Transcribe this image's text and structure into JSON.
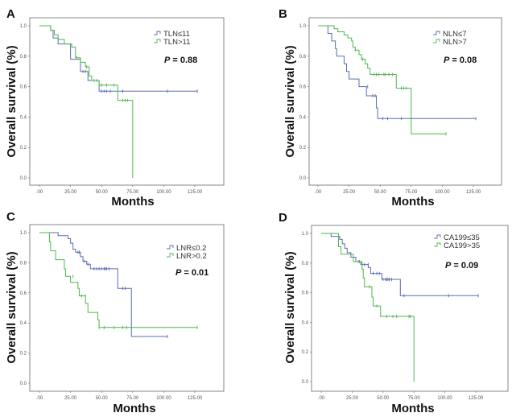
{
  "colors": {
    "group1": "#5b6cb3",
    "group2": "#4fb64f",
    "frame": "#666666"
  },
  "chart_data": [
    {
      "type": "line",
      "subtype": "kaplan-meier",
      "panel": "A",
      "xlabel": "Months",
      "ylabel": "Overall survival (%)",
      "xlim": [
        0,
        140
      ],
      "ylim": [
        0,
        1
      ],
      "xticks": [
        0,
        25,
        50,
        75,
        100,
        125
      ],
      "xtick_labels": [
        ".00",
        "25.00",
        "50.00",
        "75.00",
        "100.00",
        "125.00"
      ],
      "yticks": [
        0,
        0.2,
        0.4,
        0.6,
        0.8,
        1.0
      ],
      "ytick_labels": [
        "0.0",
        "0.2",
        "0.4",
        "0.6",
        "0.8",
        "1.0"
      ],
      "p_label": "P",
      "p_value": " = 0.88",
      "legend_position": "top-right",
      "series": [
        {
          "name": "TLN≤11",
          "steps": [
            [
              0,
              1
            ],
            [
              9,
              0.97
            ],
            [
              11,
              0.92
            ],
            [
              15,
              0.88
            ],
            [
              25,
              0.78
            ],
            [
              33,
              0.7
            ],
            [
              39,
              0.64
            ],
            [
              48,
              0.57
            ]
          ],
          "end": 127,
          "censored": [
            [
              35,
              0.7
            ],
            [
              37,
              0.7
            ],
            [
              50,
              0.57
            ],
            [
              52,
              0.57
            ],
            [
              54,
              0.57
            ],
            [
              57,
              0.57
            ],
            [
              67,
              0.57
            ],
            [
              103,
              0.57
            ],
            [
              127,
              0.57
            ]
          ]
        },
        {
          "name": "TLN>11",
          "steps": [
            [
              0,
              1
            ],
            [
              9,
              0.97
            ],
            [
              12,
              0.94
            ],
            [
              15,
              0.91
            ],
            [
              20,
              0.88
            ],
            [
              26,
              0.86
            ],
            [
              29,
              0.79
            ],
            [
              33,
              0.76
            ],
            [
              37,
              0.73
            ],
            [
              40,
              0.67
            ],
            [
              42,
              0.64
            ],
            [
              48,
              0.61
            ],
            [
              63,
              0.51
            ],
            [
              75,
              0
            ]
          ],
          "end": 75,
          "censored": [
            [
              30,
              0.79
            ],
            [
              38,
              0.73
            ],
            [
              44,
              0.64
            ],
            [
              46,
              0.64
            ],
            [
              50,
              0.61
            ],
            [
              54,
              0.61
            ],
            [
              60,
              0.61
            ],
            [
              67,
              0.51
            ],
            [
              69,
              0.51
            ],
            [
              71,
              0.51
            ]
          ]
        }
      ]
    },
    {
      "type": "line",
      "subtype": "kaplan-meier",
      "panel": "B",
      "xlabel": "Months",
      "ylabel": "Overall survival (%)",
      "xlim": [
        0,
        140
      ],
      "ylim": [
        0,
        1
      ],
      "xticks": [
        0,
        25,
        50,
        75,
        100,
        125
      ],
      "xtick_labels": [
        ".00",
        "25.00",
        "50.00",
        "75.00",
        "100.00",
        "125.00"
      ],
      "yticks": [
        0,
        0.2,
        0.4,
        0.6,
        0.8,
        1.0
      ],
      "ytick_labels": [
        "0.0",
        "0.2",
        "0.4",
        "0.6",
        "0.8",
        "1.0"
      ],
      "p_label": "P",
      "p_value": " = 0.08",
      "legend_position": "top-right",
      "series": [
        {
          "name": "NLN≤7",
          "steps": [
            [
              0,
              1
            ],
            [
              8,
              0.95
            ],
            [
              11,
              0.9
            ],
            [
              14,
              0.85
            ],
            [
              15,
              0.8
            ],
            [
              21,
              0.75
            ],
            [
              23,
              0.7
            ],
            [
              25,
              0.65
            ],
            [
              33,
              0.6
            ],
            [
              39,
              0.54
            ],
            [
              47,
              0.46
            ],
            [
              48,
              0.39
            ]
          ],
          "end": 127,
          "censored": [
            [
              40,
              0.6
            ],
            [
              44,
              0.54
            ],
            [
              46,
              0.54
            ],
            [
              52,
              0.39
            ],
            [
              56,
              0.39
            ],
            [
              67,
              0.39
            ],
            [
              127,
              0.39
            ]
          ]
        },
        {
          "name": "NLN>7",
          "steps": [
            [
              0,
              1
            ],
            [
              13,
              0.98
            ],
            [
              16,
              0.96
            ],
            [
              21,
              0.94
            ],
            [
              24,
              0.92
            ],
            [
              27,
              0.9
            ],
            [
              28,
              0.86
            ],
            [
              30,
              0.84
            ],
            [
              33,
              0.81
            ],
            [
              35,
              0.78
            ],
            [
              38,
              0.75
            ],
            [
              40,
              0.72
            ],
            [
              42,
              0.68
            ],
            [
              63,
              0.59
            ],
            [
              75,
              0.29
            ]
          ],
          "end": 103,
          "censored": [
            [
              30,
              0.84
            ],
            [
              36,
              0.78
            ],
            [
              45,
              0.68
            ],
            [
              47,
              0.68
            ],
            [
              49,
              0.68
            ],
            [
              53,
              0.68
            ],
            [
              54,
              0.68
            ],
            [
              57,
              0.68
            ],
            [
              60,
              0.68
            ],
            [
              67,
              0.59
            ],
            [
              69,
              0.59
            ],
            [
              71,
              0.59
            ],
            [
              103,
              0.29
            ]
          ]
        }
      ]
    },
    {
      "type": "line",
      "subtype": "kaplan-meier",
      "panel": "C",
      "xlabel": "Months",
      "ylabel": "Overall survival (%)",
      "xlim": [
        0,
        140
      ],
      "ylim": [
        0,
        1
      ],
      "xticks": [
        0,
        25,
        50,
        75,
        100,
        125
      ],
      "xtick_labels": [
        ".00",
        "25.00",
        "50.00",
        "75.00",
        "100.00",
        "125.00"
      ],
      "yticks": [
        0,
        0.2,
        0.4,
        0.6,
        0.8,
        1.0
      ],
      "ytick_labels": [
        "0.0",
        "0.2",
        "0.4",
        "0.6",
        "0.8",
        "1.0"
      ],
      "p_label": "P",
      "p_value": " = 0.01",
      "legend_position": "top-right",
      "series": [
        {
          "name": "LNR≤0.2",
          "steps": [
            [
              0,
              1
            ],
            [
              15,
              0.98
            ],
            [
              23,
              0.96
            ],
            [
              25,
              0.93
            ],
            [
              27,
              0.89
            ],
            [
              29,
              0.87
            ],
            [
              33,
              0.84
            ],
            [
              35,
              0.81
            ],
            [
              38,
              0.79
            ],
            [
              41,
              0.76
            ],
            [
              63,
              0.63
            ],
            [
              74,
              0.31
            ]
          ],
          "end": 103,
          "censored": [
            [
              31,
              0.87
            ],
            [
              32,
              0.87
            ],
            [
              36,
              0.81
            ],
            [
              39,
              0.79
            ],
            [
              44,
              0.76
            ],
            [
              46,
              0.76
            ],
            [
              48,
              0.76
            ],
            [
              50,
              0.76
            ],
            [
              52,
              0.76
            ],
            [
              53,
              0.76
            ],
            [
              54,
              0.76
            ],
            [
              56,
              0.76
            ],
            [
              67,
              0.63
            ],
            [
              69,
              0.63
            ],
            [
              103,
              0.31
            ]
          ]
        },
        {
          "name": "LNR>0.2",
          "steps": [
            [
              0,
              1
            ],
            [
              8,
              0.94
            ],
            [
              9,
              0.88
            ],
            [
              13,
              0.82
            ],
            [
              20,
              0.76
            ],
            [
              21,
              0.71
            ],
            [
              25,
              0.67
            ],
            [
              31,
              0.63
            ],
            [
              32,
              0.58
            ],
            [
              37,
              0.53
            ],
            [
              39,
              0.47
            ],
            [
              47,
              0.42
            ],
            [
              48,
              0.37
            ]
          ],
          "end": 127,
          "censored": [
            [
              27,
              0.71
            ],
            [
              34,
              0.58
            ],
            [
              37,
              0.58
            ],
            [
              48,
              0.37
            ],
            [
              52,
              0.37
            ],
            [
              60,
              0.37
            ],
            [
              67,
              0.37
            ],
            [
              70,
              0.37
            ],
            [
              127,
              0.37
            ]
          ]
        }
      ]
    },
    {
      "type": "line",
      "subtype": "kaplan-meier",
      "panel": "D",
      "xlabel": "Months",
      "ylabel": "Overall survival (%)",
      "xlim": [
        0,
        140
      ],
      "ylim": [
        0,
        1
      ],
      "xticks": [
        0,
        25,
        50,
        75,
        100,
        125
      ],
      "xtick_labels": [
        ".00",
        "25.00",
        "50.00",
        "75.00",
        "100.00",
        "125.00"
      ],
      "yticks": [
        0,
        0.2,
        0.4,
        0.6,
        0.8,
        1.0
      ],
      "ytick_labels": [
        "0.0",
        "0.2",
        "0.4",
        "0.6",
        "0.8",
        "1.0"
      ],
      "p_label": "P",
      "p_value": " = 0.09",
      "legend_position": "top-right",
      "series": [
        {
          "name": "CA199≤35",
          "steps": [
            [
              0,
              1
            ],
            [
              8,
              0.98
            ],
            [
              15,
              0.96
            ],
            [
              17,
              0.93
            ],
            [
              19,
              0.9
            ],
            [
              21,
              0.87
            ],
            [
              24,
              0.84
            ],
            [
              28,
              0.81
            ],
            [
              32,
              0.79
            ],
            [
              38,
              0.77
            ],
            [
              40,
              0.73
            ],
            [
              49,
              0.69
            ],
            [
              64,
              0.58
            ]
          ],
          "end": 127,
          "censored": [
            [
              31,
              0.81
            ],
            [
              33,
              0.79
            ],
            [
              35,
              0.79
            ],
            [
              38,
              0.79
            ],
            [
              42,
              0.73
            ],
            [
              45,
              0.73
            ],
            [
              47,
              0.73
            ],
            [
              50,
              0.69
            ],
            [
              52,
              0.69
            ],
            [
              53,
              0.69
            ],
            [
              54,
              0.69
            ],
            [
              55,
              0.69
            ],
            [
              57,
              0.69
            ],
            [
              67,
              0.58
            ],
            [
              103,
              0.58
            ],
            [
              127,
              0.58
            ]
          ]
        },
        {
          "name": "CA199>35",
          "steps": [
            [
              0,
              1
            ],
            [
              14,
              0.91
            ],
            [
              16,
              0.86
            ],
            [
              26,
              0.81
            ],
            [
              33,
              0.76
            ],
            [
              34,
              0.7
            ],
            [
              35,
              0.64
            ],
            [
              41,
              0.57
            ],
            [
              42,
              0.51
            ],
            [
              48,
              0.44
            ],
            [
              75,
              0
            ]
          ],
          "end": 75,
          "censored": [
            [
              30,
              0.81
            ],
            [
              39,
              0.64
            ],
            [
              45,
              0.51
            ],
            [
              53,
              0.44
            ],
            [
              58,
              0.44
            ],
            [
              61,
              0.44
            ],
            [
              71,
              0.44
            ],
            [
              72,
              0.44
            ]
          ]
        }
      ]
    }
  ]
}
